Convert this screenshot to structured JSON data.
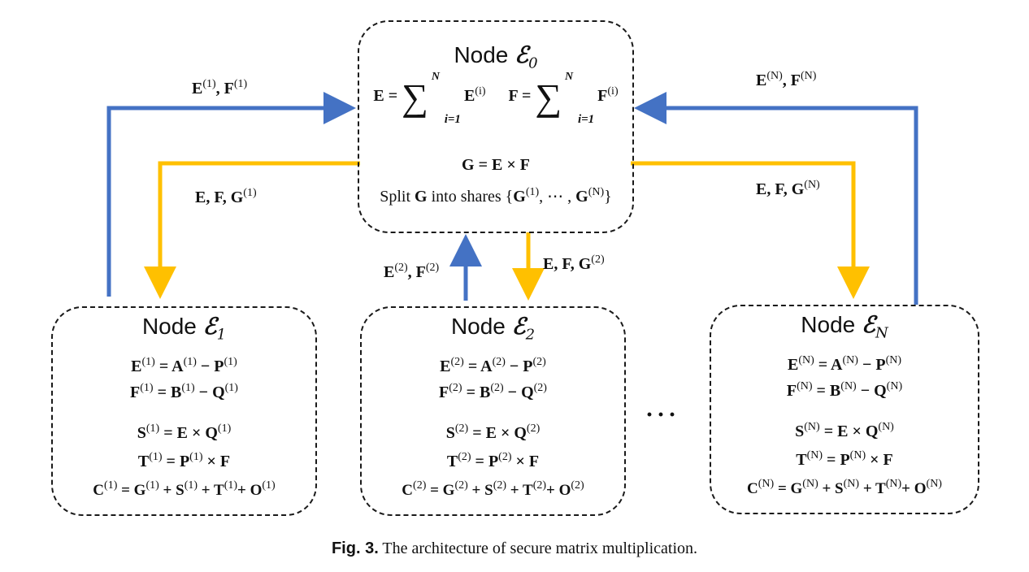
{
  "center_node": {
    "title_prefix": "Node ",
    "title_symbol": "ℰ",
    "title_sub": "0",
    "eq_sum_e_left": "E = ",
    "eq_sum_e_term": "E",
    "eq_sum_f_left": "F = ",
    "eq_sum_f_term": "F",
    "sum_upper": "N",
    "sum_lower": "i=1",
    "sum_term_sup": "(i)",
    "eq_g": "G = E × F",
    "split_prefix": "Split ",
    "split_g": "G",
    "split_mid": " into shares {",
    "split_g1": "G",
    "split_g1_sup": "(1)",
    "split_dots": ", ⋯ , ",
    "split_gn": "G",
    "split_gn_sup": "(N)",
    "split_close": "}"
  },
  "nodes": [
    {
      "title_prefix": "Node ",
      "title_symbol": "ℰ",
      "title_sub": "1",
      "eq1": "E(1) = A(1) − P(1)",
      "eq2": "F(1) = B(1) − Q(1)",
      "eq3": "S(1) = E × Q(1)",
      "eq4": "T(1) = P(1) × F",
      "eq5": "C(1) = G(1) + S(1) + T(1)+ O(1)"
    },
    {
      "title_prefix": "Node ",
      "title_symbol": "ℰ",
      "title_sub": "2",
      "eq1": "E(2) = A(2) − P(2)",
      "eq2": "F(2) = B(2) − Q(2)",
      "eq3": "S(2) = E × Q(2)",
      "eq4": "T(2) = P(2) × F",
      "eq5": "C(2) = G(2) + S(2) + T(2)+ O(2)"
    },
    {
      "title_prefix": "Node ",
      "title_symbol": "ℰ",
      "title_sub": "N",
      "eq1": "E(N) = A(N) − P(N)",
      "eq2": "F(N) = B(N) − Q(N)",
      "eq3": "S(N) = E × Q(N)",
      "eq4": "T(N) = P(N) × F",
      "eq5": "C(N) = G(N) + S(N) + T(N)+ O(N)"
    }
  ],
  "edges": {
    "up_1": "E(1), F(1)",
    "down_1": "E, F, G(1)",
    "up_2": "E(2), F(2)",
    "down_2": "E, F, G(2)",
    "up_n": "E(N), F(N)",
    "down_n": "E, F, G(N)"
  },
  "ellipsis": "···",
  "caption": {
    "label": "Fig. 3.",
    "text": " The architecture of secure matrix multiplication."
  },
  "colors": {
    "upload_arrow": "#4472C4",
    "download_arrow": "#FFC000",
    "border": "#1a1a1a"
  }
}
